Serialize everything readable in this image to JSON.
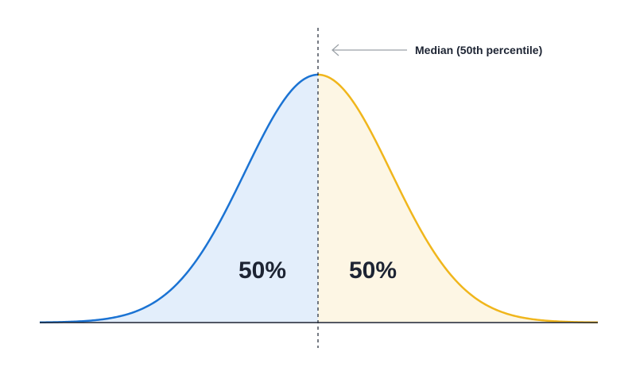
{
  "diagram": {
    "type": "normal-distribution",
    "left_area": {
      "label": "50%",
      "color": "#1b73d3",
      "fill": "#e3eefb"
    },
    "right_area": {
      "label": "50%",
      "color": "#f0b61c",
      "fill": "#fdf6e4"
    },
    "median_annotation": "Median (50th percentile)",
    "annotation_arrow_color": "#9aa0a6",
    "baseline_color": "#1d2433"
  }
}
